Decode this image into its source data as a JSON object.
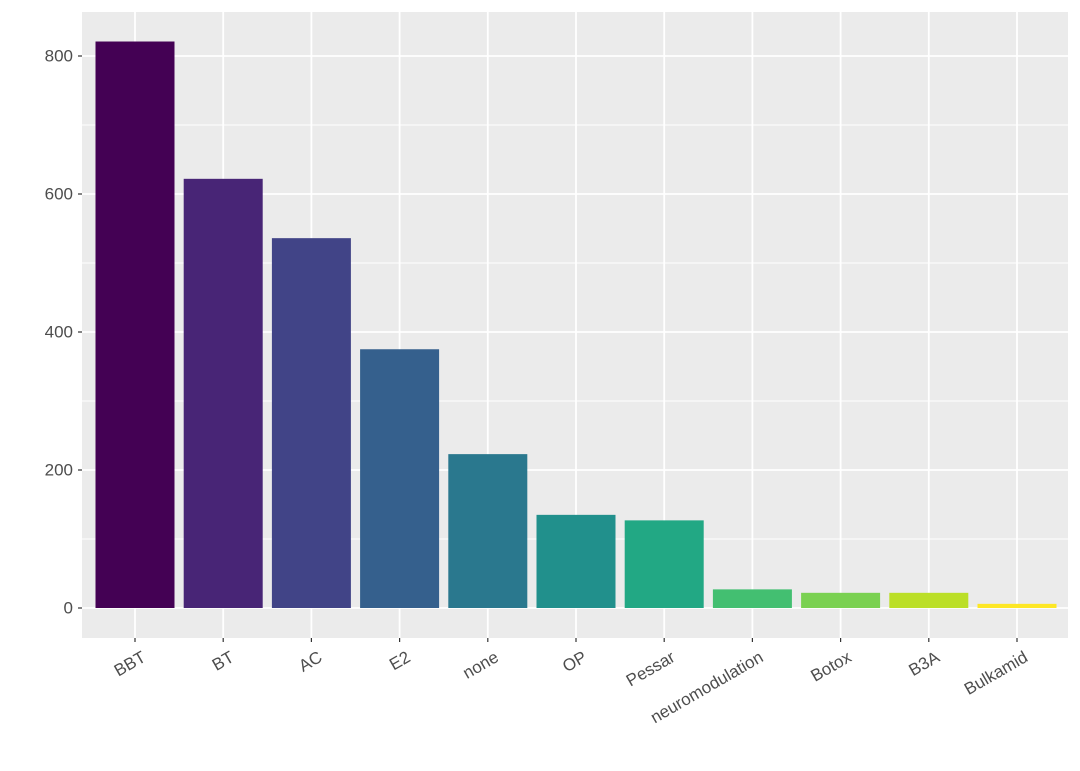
{
  "chart_data": {
    "type": "bar",
    "title": "",
    "xlabel": "",
    "ylabel": "",
    "categories": [
      "BBT",
      "BT",
      "AC",
      "E2",
      "none",
      "OP",
      "Pessar",
      "neuromodulation",
      "Botox",
      "B3A",
      "Bulkamid"
    ],
    "values": [
      821,
      622,
      536,
      375,
      223,
      135,
      127,
      27,
      22,
      22,
      6
    ],
    "colors": [
      "#440154",
      "#482576",
      "#414487",
      "#35608D",
      "#2A788E",
      "#21908C",
      "#22A884",
      "#43BF71",
      "#7AD151",
      "#BBDF27",
      "#FDE725"
    ],
    "ylim": [
      0,
      830
    ],
    "yticks": [
      0,
      200,
      400,
      600,
      800
    ],
    "grid": true,
    "legend": "none",
    "panel_background": "#EBEBEB",
    "grid_color": "#FFFFFF"
  }
}
